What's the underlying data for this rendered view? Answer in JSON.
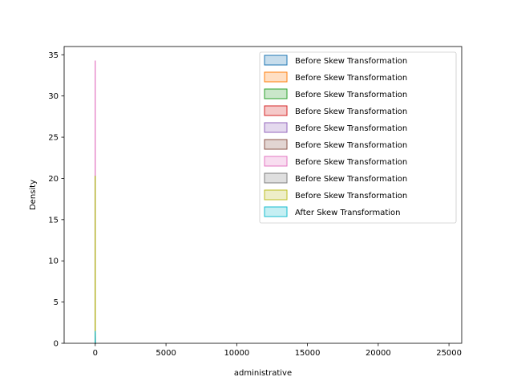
{
  "chart_data": {
    "type": "area",
    "title": "",
    "xlabel": "administrative",
    "ylabel": "Density",
    "xlim": [
      -2200,
      25900
    ],
    "ylim": [
      0,
      36
    ],
    "xticks": [
      0,
      5000,
      10000,
      15000,
      20000,
      25000
    ],
    "yticks": [
      0,
      5,
      10,
      15,
      20,
      25,
      30,
      35
    ],
    "grid": false,
    "legend": "top-right",
    "series": [
      {
        "name": "Before Skew Transformation",
        "color": "#1f77b4",
        "x": [
          -6,
          0,
          1,
          3,
          6
        ],
        "y": [
          0,
          20.2,
          20.3,
          2.0,
          0
        ]
      },
      {
        "name": "Before Skew Transformation",
        "color": "#ff7f0e",
        "x": [
          -6,
          0,
          1,
          3,
          6
        ],
        "y": [
          0,
          20.3,
          20.2,
          2.1,
          0
        ]
      },
      {
        "name": "Before Skew Transformation",
        "color": "#2ca02c",
        "x": [
          -6,
          0,
          1,
          3,
          6
        ],
        "y": [
          0,
          20.1,
          20.2,
          1.9,
          0
        ]
      },
      {
        "name": "Before Skew Transformation",
        "color": "#d62728",
        "x": [
          -6,
          0,
          1,
          3,
          6
        ],
        "y": [
          0,
          20.2,
          20.1,
          2.0,
          0
        ]
      },
      {
        "name": "Before Skew Transformation",
        "color": "#9467bd",
        "x": [
          -6,
          0,
          1,
          3,
          6
        ],
        "y": [
          0,
          20.3,
          20.3,
          2.1,
          0
        ]
      },
      {
        "name": "Before Skew Transformation",
        "color": "#8c564b",
        "x": [
          -6,
          0,
          1,
          3,
          6
        ],
        "y": [
          0,
          20.2,
          20.2,
          2.0,
          0
        ]
      },
      {
        "name": "Before Skew Transformation",
        "color": "#e377c2",
        "x": [
          -4,
          0,
          1,
          2,
          4
        ],
        "y": [
          0,
          34.3,
          34.2,
          3.0,
          0
        ]
      },
      {
        "name": "Before Skew Transformation",
        "color": "#7f7f7f",
        "x": [
          -6,
          0,
          1,
          3,
          6
        ],
        "y": [
          0,
          20.3,
          20.2,
          3.2,
          0
        ]
      },
      {
        "name": "Before Skew Transformation",
        "color": "#bcbd22",
        "x": [
          -6,
          0,
          1,
          3,
          6
        ],
        "y": [
          0,
          20.2,
          20.3,
          2.0,
          0
        ]
      },
      {
        "name": "After Skew Transformation",
        "color": "#17becf",
        "x": [
          -6,
          0,
          1,
          3,
          6
        ],
        "y": [
          0,
          1.5,
          1.4,
          0.2,
          0
        ]
      }
    ]
  }
}
